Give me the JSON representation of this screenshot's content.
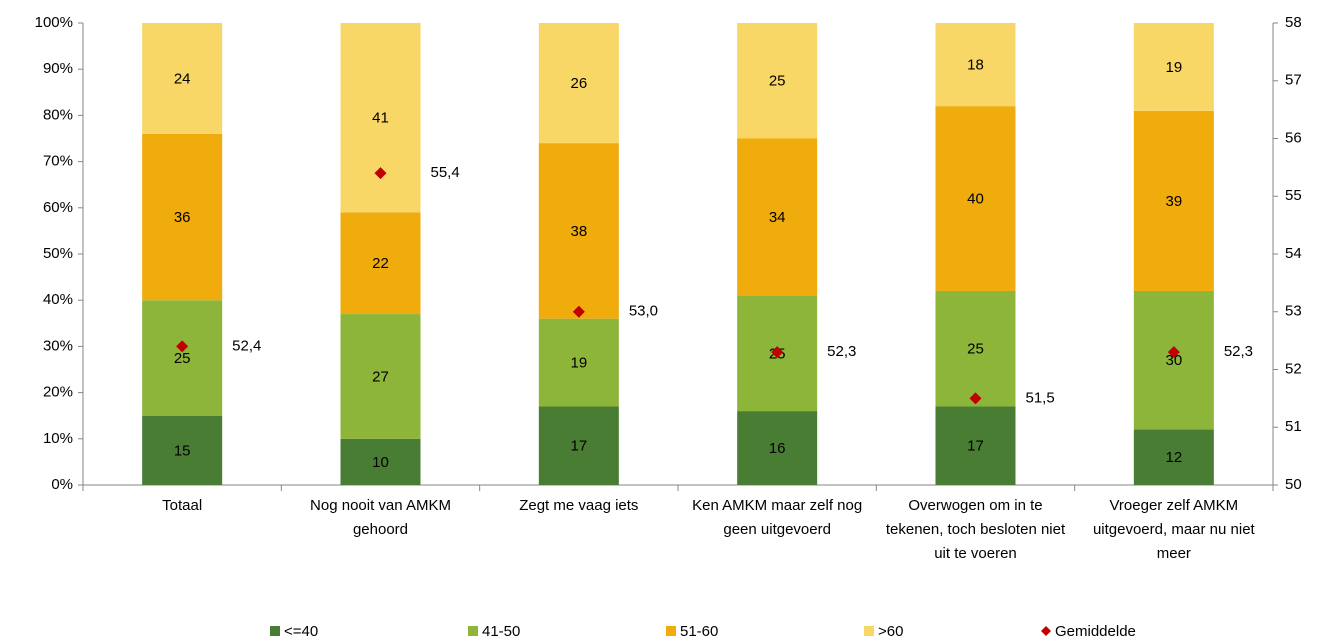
{
  "chart_data": {
    "type": "bar",
    "stacked": true,
    "categories": [
      "Totaal",
      "Nog nooit van AMKM gehoord",
      "Zegt me vaag iets",
      "Ken AMKM maar zelf nog geen uitgevoerd",
      "Overwogen om in te tekenen, toch besloten niet uit te voeren",
      "Vroeger zelf AMKM uitgevoerd, maar nu niet meer"
    ],
    "series": [
      {
        "name": "<=40",
        "color": "#4a7d34",
        "values": [
          15,
          10,
          17,
          16,
          17,
          12
        ]
      },
      {
        "name": "41-50",
        "color": "#8db53a",
        "values": [
          25,
          27,
          19,
          25,
          25,
          30
        ]
      },
      {
        "name": "51-60",
        "color": "#f0ab0c",
        "values": [
          36,
          22,
          38,
          34,
          40,
          39
        ]
      },
      {
        "name": ">60",
        "color": "#f8d766",
        "values": [
          24,
          41,
          26,
          25,
          18,
          19
        ]
      },
      {
        "name": "Gemiddelde",
        "color": "#c00000",
        "axis": "y2",
        "marker": "diamond",
        "values": [
          52.4,
          55.4,
          53.0,
          52.3,
          51.5,
          52.3
        ],
        "value_labels": [
          "52,4",
          "55,4",
          "53,0",
          "52,3",
          "51,5",
          "52,3"
        ]
      }
    ],
    "ylim": [
      0,
      100
    ],
    "yticks": [
      {
        "value": 0,
        "label": "0%"
      },
      {
        "value": 10,
        "label": "10%"
      },
      {
        "value": 20,
        "label": "20%"
      },
      {
        "value": 30,
        "label": "30%"
      },
      {
        "value": 40,
        "label": "40%"
      },
      {
        "value": 50,
        "label": "50%"
      },
      {
        "value": 60,
        "label": "60%"
      },
      {
        "value": 70,
        "label": "70%"
      },
      {
        "value": 80,
        "label": "80%"
      },
      {
        "value": 90,
        "label": "90%"
      },
      {
        "value": 100,
        "label": "100%"
      }
    ],
    "y2lim": [
      50,
      58
    ],
    "y2ticks": [
      50,
      51,
      52,
      53,
      54,
      55,
      56,
      57,
      58
    ],
    "grid": false,
    "legend": "bottom"
  }
}
